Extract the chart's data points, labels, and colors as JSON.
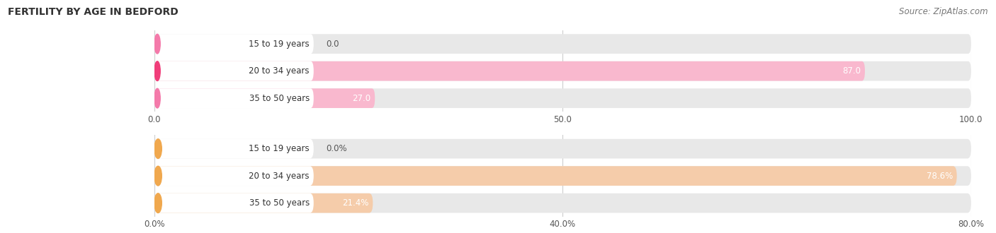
{
  "title": "FERTILITY BY AGE IN BEDFORD",
  "source": "Source: ZipAtlas.com",
  "top_chart": {
    "categories": [
      "15 to 19 years",
      "20 to 34 years",
      "35 to 50 years"
    ],
    "values": [
      0.0,
      87.0,
      27.0
    ],
    "xlim": [
      0,
      100
    ],
    "xticks": [
      0.0,
      50.0,
      100.0
    ],
    "bar_colors_strong": [
      "#f47aaa",
      "#f03e7a",
      "#f47aaa"
    ],
    "bar_colors_light": [
      "#f9b8ce",
      "#f9b8ce",
      "#f9b8ce"
    ],
    "bar_bg_color": "#e8e8e8"
  },
  "bottom_chart": {
    "categories": [
      "15 to 19 years",
      "20 to 34 years",
      "35 to 50 years"
    ],
    "values": [
      0.0,
      78.6,
      21.4
    ],
    "xlim": [
      0,
      80
    ],
    "xticks": [
      0.0,
      40.0,
      80.0
    ],
    "xtick_labels": [
      "0.0%",
      "40.0%",
      "80.0%"
    ],
    "bar_colors_strong": [
      "#f0a84e",
      "#f0a84e",
      "#f0a84e"
    ],
    "bar_colors_light": [
      "#f5ccaa",
      "#f5ccaa",
      "#f5ccaa"
    ],
    "bar_bg_color": "#e8e8e8"
  },
  "title_fontsize": 10,
  "source_fontsize": 8.5,
  "label_fontsize": 8.5,
  "category_fontsize": 8.5,
  "tick_fontsize": 8.5,
  "bg_color": "#ffffff",
  "bar_bg_color": "#e8e8e8"
}
